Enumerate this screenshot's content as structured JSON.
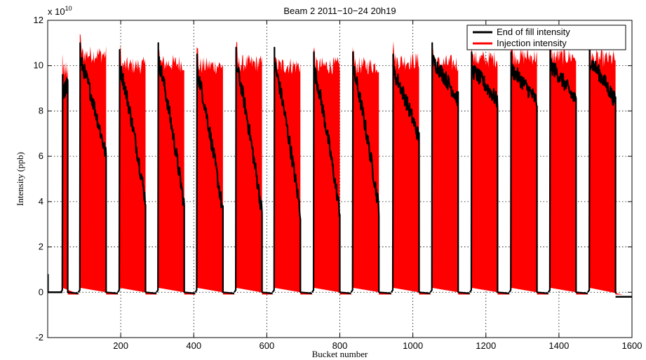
{
  "chart_data": {
    "type": "bar",
    "title": "Beam 2 2011−10−24 20h19",
    "xlabel": "Bucket number",
    "ylabel": "Intensity (ppb)",
    "y_multiplier": "x 10",
    "y_multiplier_exponent": "10",
    "xlim": [
      0,
      1600
    ],
    "ylim": [
      -2,
      12
    ],
    "x_ticks": [
      200,
      400,
      600,
      800,
      1000,
      1200,
      1400,
      1600
    ],
    "y_ticks": [
      -2,
      0,
      2,
      4,
      6,
      8,
      10,
      12
    ],
    "grid": "dotted",
    "legend_position": "top-right",
    "series": [
      {
        "name": "End of fill intensity",
        "color": "#000000",
        "style": "line",
        "trains": [
          {
            "x": [
              40,
              55
            ],
            "y": [
              9.6,
              9.2
            ]
          },
          {
            "x": [
              88,
              160
            ],
            "y": [
              11.0,
              6.0
            ]
          },
          {
            "x": [
              196,
              268
            ],
            "y": [
              10.7,
              4.0
            ]
          },
          {
            "x": [
              302,
              374
            ],
            "y": [
              11.0,
              3.8
            ]
          },
          {
            "x": [
              408,
              480
            ],
            "y": [
              10.5,
              3.5
            ]
          },
          {
            "x": [
              515,
              587
            ],
            "y": [
              10.8,
              3.5
            ]
          },
          {
            "x": [
              620,
              692
            ],
            "y": [
              10.8,
              3.5
            ]
          },
          {
            "x": [
              728,
              800
            ],
            "y": [
              10.6,
              3.5
            ]
          },
          {
            "x": [
              835,
              907
            ],
            "y": [
              10.6,
              3.7
            ]
          },
          {
            "x": [
              945,
              1017
            ],
            "y": [
              10.5,
              6.8
            ]
          },
          {
            "x": [
              1052,
              1124
            ],
            "y": [
              11.0,
              8.5
            ]
          },
          {
            "x": [
              1160,
              1232
            ],
            "y": [
              10.6,
              8.4
            ]
          },
          {
            "x": [
              1268,
              1340
            ],
            "y": [
              10.6,
              8.4
            ]
          },
          {
            "x": [
              1375,
              1447
            ],
            "y": [
              10.8,
              8.4
            ]
          },
          {
            "x": [
              1483,
              1555
            ],
            "y": [
              11.0,
              8.4
            ]
          }
        ],
        "baseline_segments": [
          {
            "x": [
              0,
              40
            ],
            "y": 0.0
          },
          {
            "x": [
              1555,
              1600
            ],
            "y": -0.2
          }
        ]
      },
      {
        "name": "Injection intensity",
        "color": "#ff0000",
        "style": "filled",
        "trains": [
          {
            "x": [
              40,
              55
            ],
            "y_top": 9.8
          },
          {
            "x": [
              88,
              160
            ],
            "y_top": 10.5
          },
          {
            "x": [
              196,
              268
            ],
            "y_top": 10.0
          },
          {
            "x": [
              302,
              374
            ],
            "y_top": 10.1
          },
          {
            "x": [
              408,
              480
            ],
            "y_top": 10.0
          },
          {
            "x": [
              515,
              587
            ],
            "y_top": 10.1
          },
          {
            "x": [
              620,
              692
            ],
            "y_top": 10.0
          },
          {
            "x": [
              728,
              800
            ],
            "y_top": 10.0
          },
          {
            "x": [
              835,
              907
            ],
            "y_top": 10.0
          },
          {
            "x": [
              945,
              1017
            ],
            "y_top": 10.2
          },
          {
            "x": [
              1052,
              1124
            ],
            "y_top": 10.1
          },
          {
            "x": [
              1160,
              1232
            ],
            "y_top": 10.3
          },
          {
            "x": [
              1268,
              1340
            ],
            "y_top": 10.4
          },
          {
            "x": [
              1375,
              1447
            ],
            "y_top": 10.4
          },
          {
            "x": [
              1483,
              1555
            ],
            "y_top": 10.3
          }
        ]
      }
    ]
  }
}
